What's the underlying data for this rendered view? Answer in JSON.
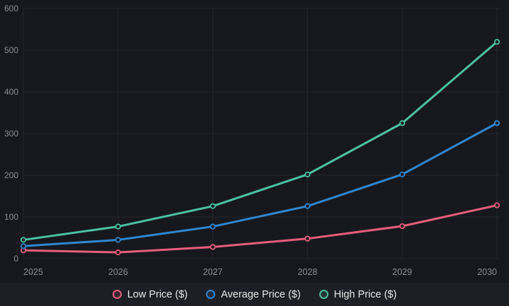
{
  "chart_data": {
    "type": "line",
    "title": "",
    "xlabel": "",
    "ylabel": "",
    "categories": [
      "2025",
      "2026",
      "2027",
      "2028",
      "2029",
      "2030"
    ],
    "yticks": [
      0,
      100,
      200,
      300,
      400,
      500,
      600
    ],
    "ylim": [
      0,
      600
    ],
    "grid": true,
    "legend_position": "bottom",
    "marker": "hollow-circle",
    "series": [
      {
        "name": "Low Price ($)",
        "color": "#e85d7b",
        "values": [
          20,
          15,
          28,
          48,
          78,
          128
        ]
      },
      {
        "name": "Average Price ($)",
        "color": "#3087d1",
        "values": [
          30,
          45,
          77,
          126,
          202,
          325
        ]
      },
      {
        "name": "High Price ($)",
        "color": "#4cc2a5",
        "values": [
          45,
          77,
          126,
          202,
          325,
          520
        ]
      }
    ]
  },
  "colors": {
    "background": "#16181d",
    "legend_band": "#1c1f25",
    "gridline": "#24272e",
    "tick_text": "#8b8e93",
    "legend_text": "#e8e9ea"
  }
}
